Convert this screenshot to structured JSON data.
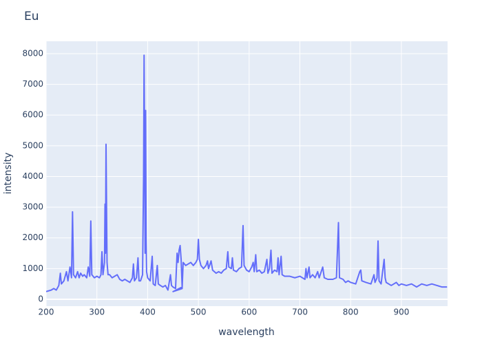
{
  "chart_data": {
    "type": "line",
    "title": "Eu",
    "x_label": "wavelength",
    "y_label": "intensity",
    "x": [
      200,
      210,
      215,
      220,
      225,
      228,
      230,
      235,
      240,
      243,
      247,
      250,
      252,
      254,
      258,
      262,
      265,
      268,
      272,
      275,
      280,
      283,
      286,
      288,
      290,
      295,
      300,
      305,
      308,
      310,
      312,
      315,
      316,
      317,
      318,
      320,
      322,
      325,
      330,
      335,
      340,
      345,
      350,
      355,
      360,
      365,
      370,
      372,
      374,
      378,
      381,
      383,
      386,
      390,
      392,
      393,
      394,
      395,
      396,
      397,
      398,
      400,
      405,
      409,
      411,
      415,
      419,
      421,
      425,
      430,
      435,
      440,
      445,
      447,
      450,
      455,
      458,
      460,
      462,
      464,
      466,
      468,
      450,
      468,
      470,
      475,
      480,
      485,
      490,
      495,
      498,
      500,
      502,
      505,
      510,
      515,
      518,
      520,
      525,
      528,
      535,
      540,
      545,
      550,
      555,
      558,
      560,
      565,
      567,
      569,
      575,
      580,
      585,
      588,
      590,
      595,
      600,
      605,
      608,
      610,
      613,
      615,
      620,
      625,
      630,
      635,
      637,
      640,
      643,
      645,
      650,
      655,
      657,
      659,
      663,
      665,
      670,
      680,
      690,
      700,
      710,
      712,
      714,
      718,
      720,
      725,
      730,
      735,
      738,
      745,
      748,
      755,
      765,
      772,
      776,
      778,
      785,
      790,
      795,
      800,
      810,
      818,
      820,
      822,
      830,
      840,
      846,
      848,
      852,
      854,
      856,
      860,
      866,
      868,
      870,
      880,
      890,
      895,
      900,
      910,
      920,
      930,
      940,
      950,
      960,
      970,
      980,
      990
    ],
    "series": [
      {
        "name": "intensity",
        "color": "#636efa",
        "values": [
          250,
          300,
          350,
          300,
          450,
          850,
          500,
          600,
          900,
          600,
          1050,
          700,
          2850,
          800,
          700,
          900,
          700,
          850,
          750,
          800,
          700,
          1050,
          750,
          2550,
          800,
          700,
          750,
          700,
          800,
          1550,
          800,
          1200,
          3100,
          1500,
          5050,
          1200,
          800,
          800,
          700,
          750,
          800,
          650,
          600,
          650,
          600,
          550,
          700,
          1150,
          600,
          700,
          1350,
          600,
          600,
          800,
          4000,
          7950,
          5000,
          1500,
          6150,
          2000,
          900,
          700,
          600,
          1400,
          500,
          450,
          1100,
          500,
          450,
          400,
          450,
          300,
          800,
          450,
          400,
          350,
          1500,
          1200,
          1600,
          1750,
          1300,
          400,
          250,
          350,
          1200,
          1100,
          1150,
          1200,
          1100,
          1200,
          1300,
          1950,
          1300,
          1100,
          1000,
          1100,
          1250,
          1000,
          1250,
          950,
          850,
          900,
          850,
          950,
          1000,
          1550,
          1050,
          1000,
          1350,
          950,
          900,
          1000,
          1050,
          2400,
          1100,
          950,
          900,
          1050,
          1200,
          900,
          1450,
          900,
          950,
          850,
          900,
          1300,
          850,
          1000,
          1600,
          850,
          950,
          900,
          1350,
          800,
          1400,
          800,
          750,
          750,
          700,
          750,
          650,
          1000,
          700,
          1050,
          700,
          800,
          700,
          900,
          700,
          1050,
          700,
          650,
          650,
          700,
          2500,
          700,
          650,
          550,
          600,
          550,
          500,
          900,
          950,
          600,
          550,
          500,
          800,
          550,
          700,
          1900,
          600,
          500,
          1300,
          700,
          550,
          450,
          550,
          450,
          500,
          450,
          500,
          400,
          500,
          450,
          500,
          450,
          400,
          400
        ]
      }
    ],
    "xlim": [
      200,
      991
    ],
    "ylim": [
      -224,
      8403
    ],
    "xticks": [
      200,
      300,
      400,
      500,
      600,
      700,
      800,
      900
    ],
    "yticks": [
      0,
      1000,
      2000,
      3000,
      4000,
      5000,
      6000,
      7000,
      8000
    ],
    "grid": true
  }
}
